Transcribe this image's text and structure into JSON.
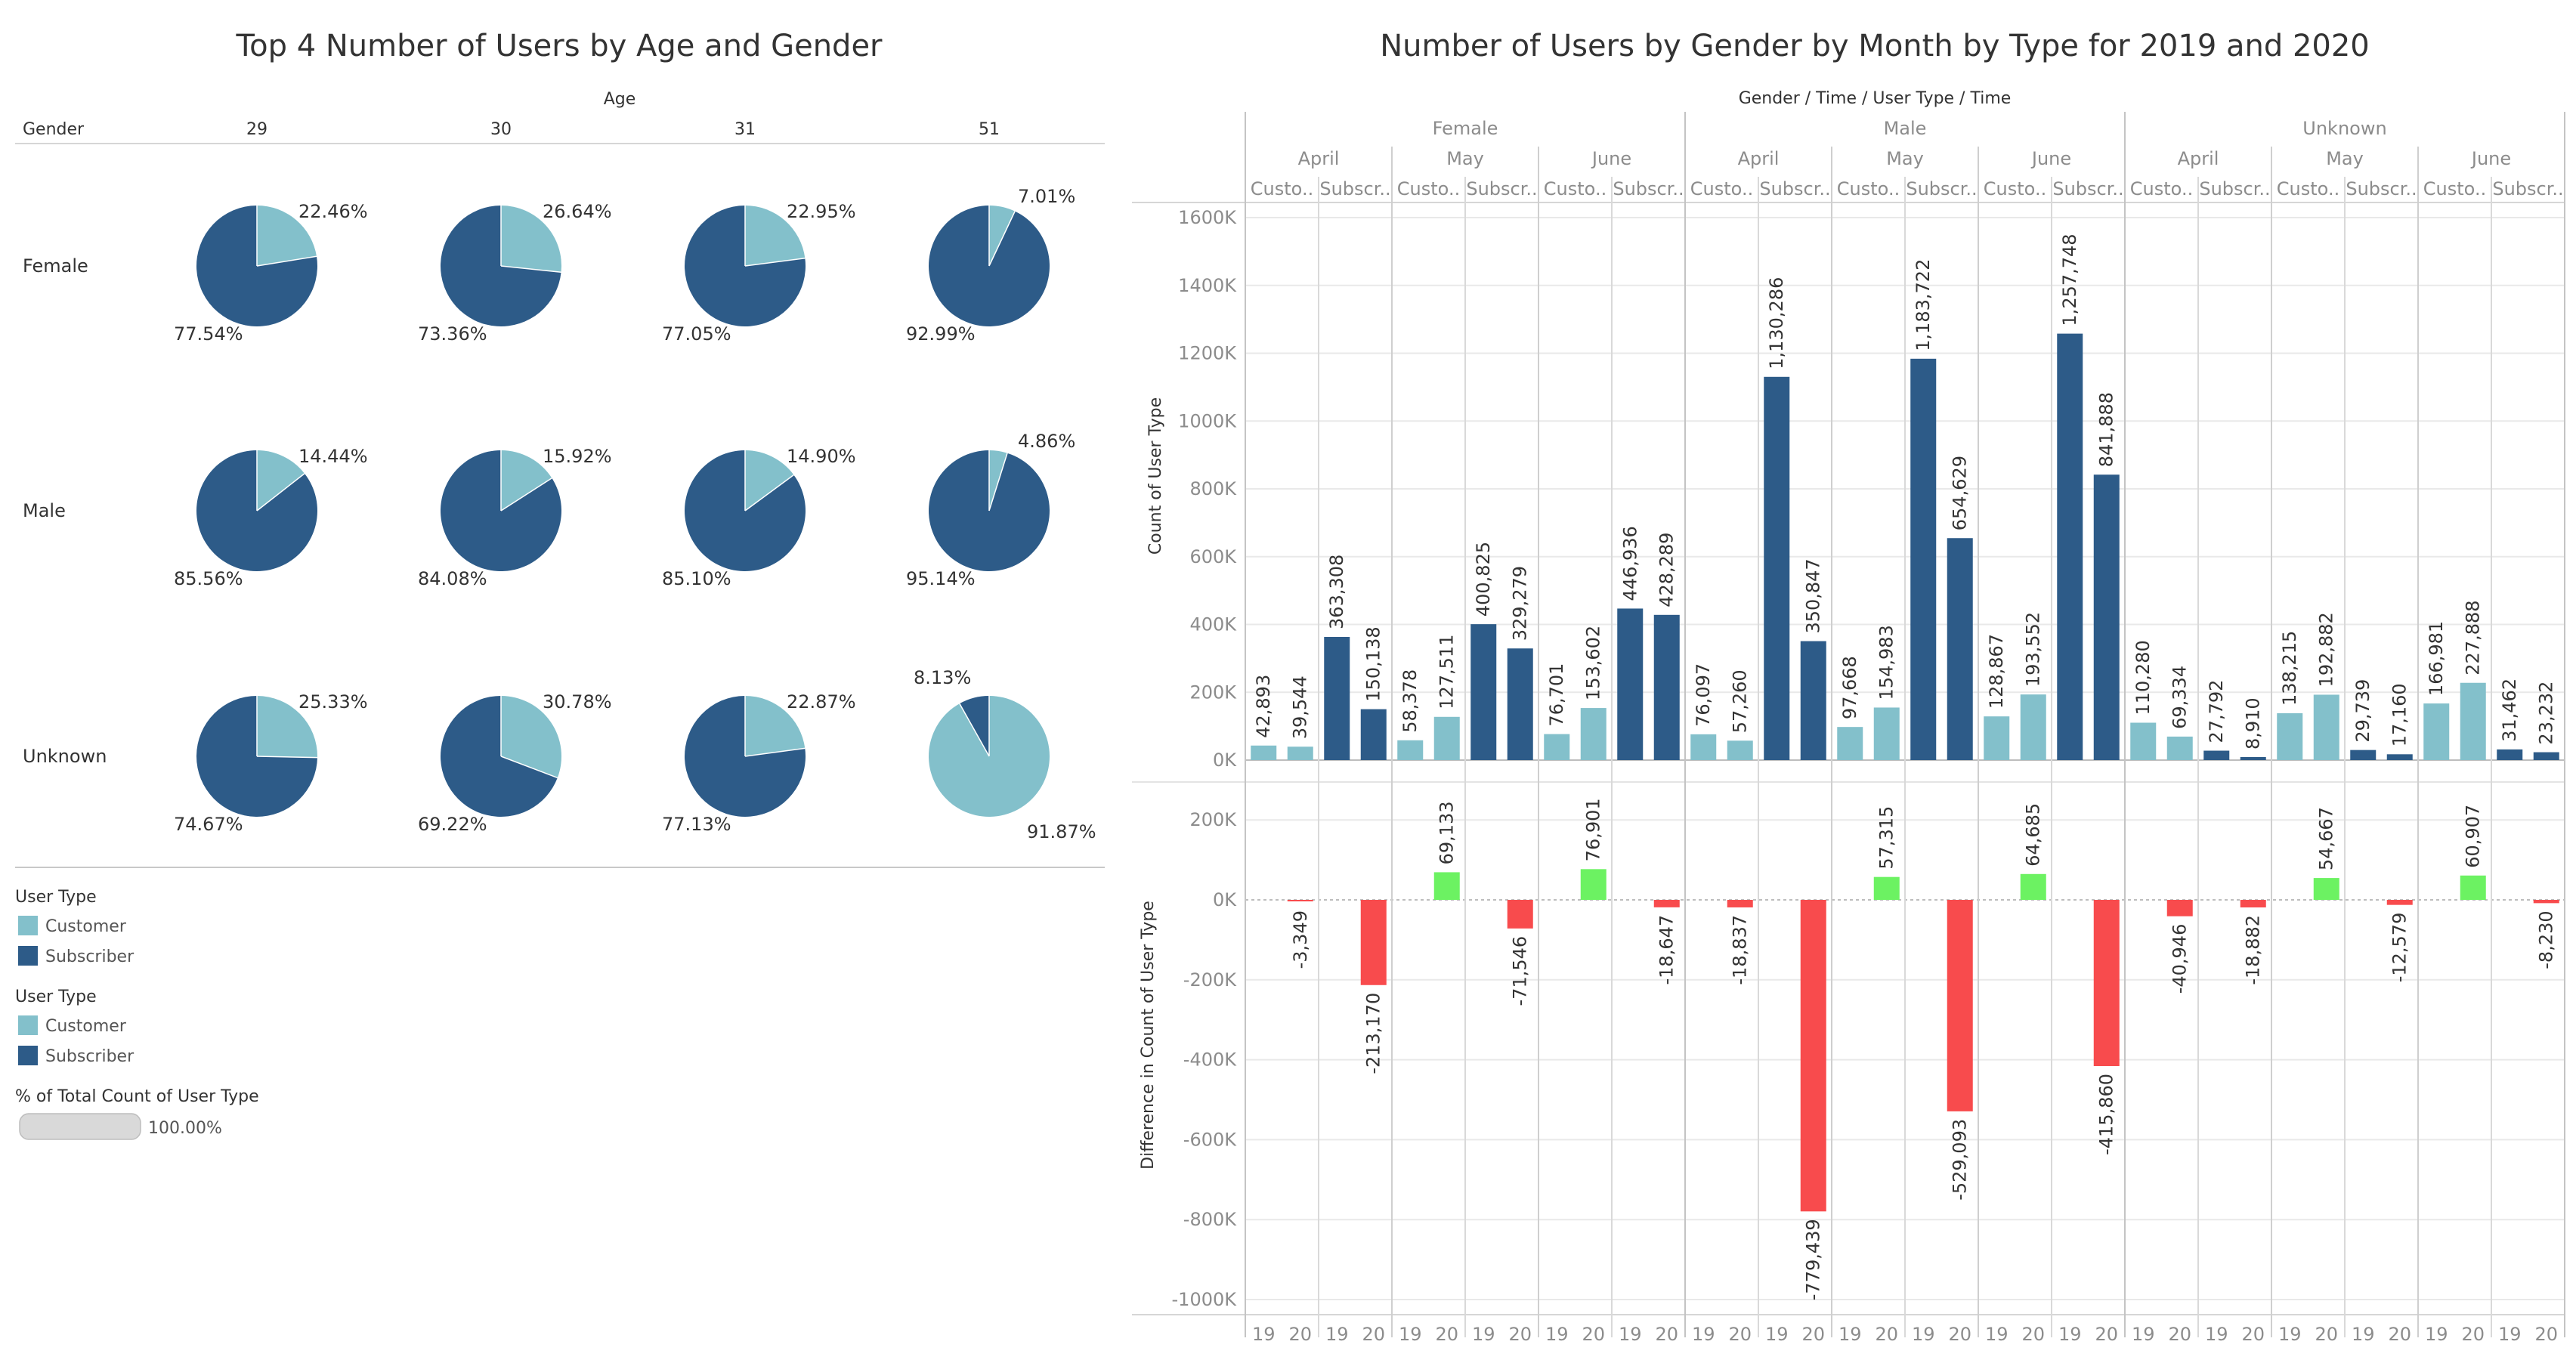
{
  "colors": {
    "customer": "#83c0cb",
    "subscriber": "#2d5b88",
    "positive": "#6cf262",
    "negative": "#f84b4d",
    "grid": "#e9e9e9",
    "divider": "#c8c8c8"
  },
  "left": {
    "title": "Top 4 Number of Users by Age and Gender",
    "age_header": "Age",
    "gender_header": "Gender",
    "legend": {
      "title1": "User Type",
      "title2": "User Type",
      "customer": "Customer",
      "subscriber": "Subscriber",
      "pct_title": "% of Total Count of User Type",
      "pct_value": "100.00%"
    }
  },
  "right": {
    "title": "Number of Users by Gender by Month by Type for 2019 and 2020",
    "header_path": "Gender / Time / User Type / Time",
    "top_axis_title": "Count of User Type",
    "bottom_axis_title": "Difference in Count of User Type"
  },
  "chart_data": [
    {
      "type": "pie",
      "title": "Top 4 Number of Users by Age and Gender",
      "ages": [
        "29",
        "30",
        "31",
        "51"
      ],
      "genders": [
        "Female",
        "Male",
        "Unknown"
      ],
      "series_names": [
        "Customer",
        "Subscriber"
      ],
      "cells": [
        [
          {
            "customer": 22.46,
            "subscriber": 77.54,
            "labels": [
              "22.46%",
              "77.54%"
            ]
          },
          {
            "customer": 26.64,
            "subscriber": 73.36,
            "labels": [
              "26.64%",
              "73.36%"
            ]
          },
          {
            "customer": 22.95,
            "subscriber": 77.05,
            "labels": [
              "22.95%",
              "77.05%"
            ]
          },
          {
            "customer": 7.01,
            "subscriber": 92.99,
            "labels": [
              "7.01%",
              "92.99%"
            ]
          }
        ],
        [
          {
            "customer": 14.44,
            "subscriber": 85.56,
            "labels": [
              "14.44%",
              "85.56%"
            ]
          },
          {
            "customer": 15.92,
            "subscriber": 84.08,
            "labels": [
              "15.92%",
              "84.08%"
            ]
          },
          {
            "customer": 14.9,
            "subscriber": 85.1,
            "labels": [
              "14.90%",
              "85.10%"
            ]
          },
          {
            "customer": 4.86,
            "subscriber": 95.14,
            "labels": [
              "4.86%",
              "95.14%"
            ]
          }
        ],
        [
          {
            "customer": 25.33,
            "subscriber": 74.67,
            "labels": [
              "25.33%",
              "74.67%"
            ]
          },
          {
            "customer": 30.78,
            "subscriber": 69.22,
            "labels": [
              "30.78%",
              "69.22%"
            ]
          },
          {
            "customer": 22.87,
            "subscriber": 77.13,
            "labels": [
              "22.87%",
              "77.13%"
            ]
          },
          {
            "customer": 91.87,
            "subscriber": 8.13,
            "labels": [
              "91.87%",
              "8.13%"
            ]
          }
        ]
      ]
    },
    {
      "type": "bar",
      "title": "Number of Users by Gender by Month by Type for 2019 and 2020",
      "ylabel": "Count of User Type",
      "ylim": [
        0,
        1600000
      ],
      "yticks": [
        0,
        200000,
        400000,
        600000,
        800000,
        1000000,
        1200000,
        1400000,
        1600000
      ],
      "ytick_labels": [
        "0K",
        "200K",
        "400K",
        "600K",
        "800K",
        "1000K",
        "1200K",
        "1400K",
        "1600K"
      ],
      "genders": [
        "Female",
        "Male",
        "Unknown"
      ],
      "months": [
        "April",
        "May",
        "June"
      ],
      "type_labels": [
        "Custo..",
        "Subscr.."
      ],
      "years": [
        "19",
        "20"
      ],
      "values": [
        [
          42893,
          39544,
          363308,
          150138,
          58378,
          127511,
          400825,
          329279,
          76701,
          153602,
          446936,
          428289
        ],
        [
          76097,
          57260,
          1130286,
          350847,
          97668,
          154983,
          1183722,
          654629,
          128867,
          193552,
          1257748,
          841888
        ],
        [
          110280,
          69334,
          27792,
          8910,
          138215,
          192882,
          29739,
          17160,
          166981,
          227888,
          31462,
          23232
        ]
      ],
      "value_labels": [
        [
          "42,893",
          "39,544",
          "363,308",
          "150,138",
          "58,378",
          "127,511",
          "400,825",
          "329,279",
          "76,701",
          "153,602",
          "446,936",
          "428,289"
        ],
        [
          "76,097",
          "57,260",
          "1,130,286",
          "350,847",
          "97,668",
          "154,983",
          "1,183,722",
          "654,629",
          "128,867",
          "193,552",
          "1,257,748",
          "841,888"
        ],
        [
          "110,280",
          "69,334",
          "27,792",
          "8,910",
          "138,215",
          "192,882",
          "29,739",
          "17,160",
          "166,981",
          "227,888",
          "31,462",
          "23,232"
        ]
      ]
    },
    {
      "type": "bar",
      "ylabel": "Difference in Count of User Type",
      "ylim": [
        -1000000,
        200000
      ],
      "yticks": [
        200000,
        0,
        -200000,
        -400000,
        -600000,
        -800000,
        -1000000
      ],
      "ytick_labels": [
        "200K",
        "0K",
        "-200K",
        "-400K",
        "-600K",
        "-800K",
        "-1000K"
      ],
      "differences": [
        [
          null,
          -3349,
          null,
          -213170,
          null,
          69133,
          null,
          -71546,
          null,
          76901,
          null,
          -18647
        ],
        [
          null,
          -18837,
          null,
          -779439,
          null,
          57315,
          null,
          -529093,
          null,
          64685,
          null,
          -415860
        ],
        [
          null,
          -40946,
          null,
          -18882,
          null,
          54667,
          null,
          -12579,
          null,
          60907,
          null,
          -8230
        ]
      ],
      "difference_labels": [
        [
          "",
          "-3,349",
          "",
          "-213,170",
          "",
          "69,133",
          "",
          "-71,546",
          "",
          "76,901",
          "",
          "-18,647"
        ],
        [
          "",
          "-18,837",
          "",
          "-779,439",
          "",
          "57,315",
          "",
          "-529,093",
          "",
          "64,685",
          "",
          "-415,860"
        ],
        [
          "",
          "-40,946",
          "",
          "-18,882",
          "",
          "54,667",
          "",
          "-12,579",
          "",
          "60,907",
          "",
          "-8,230"
        ]
      ]
    }
  ]
}
